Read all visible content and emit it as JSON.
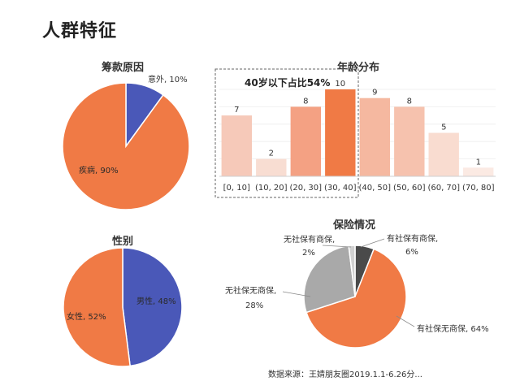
{
  "page": {
    "title": "人群特征"
  },
  "source_text": "数据来源：王婧朋友圈2019.1.1-6.26分...",
  "chart_data": [
    {
      "id": "fundraising",
      "type": "pie",
      "title": "筹款原因",
      "slices": [
        {
          "label": "意外, 10%",
          "value": 10,
          "color": "#4a58b8"
        },
        {
          "label": "疾病, 90%",
          "value": 90,
          "color": "#f07a45"
        }
      ]
    },
    {
      "id": "age",
      "type": "bar",
      "title": "年龄分布",
      "annotation": "40岁以下占比54%",
      "categories": [
        "[0, 10]",
        "(10, 20]",
        "(20, 30]",
        "(30, 40]",
        "(40, 50]",
        "(50, 60]",
        "(60, 70]",
        "(70, 80]"
      ],
      "values": [
        7,
        2,
        8,
        10,
        9,
        8,
        5,
        1
      ],
      "colors": [
        "#f6c9b9",
        "#f8ddd2",
        "#f4a183",
        "#f07a45",
        "#f5b8a0",
        "#f6c2ae",
        "#f9dcd0",
        "#fbeae3"
      ],
      "ylim": [
        0,
        10
      ]
    },
    {
      "id": "gender",
      "type": "pie",
      "title": "性别",
      "slices": [
        {
          "label": "男性, 48%",
          "value": 48,
          "color": "#4a58b8"
        },
        {
          "label": "女性, 52%",
          "value": 52,
          "color": "#f07a45"
        }
      ]
    },
    {
      "id": "insurance",
      "type": "pie",
      "title": "保险情况",
      "slices": [
        {
          "label_line1": "有社保有商保,",
          "label_line2": "6%",
          "value": 6,
          "color": "#4a4a4a"
        },
        {
          "label_line1": "有社保无商保, 64%",
          "label_line2": "",
          "value": 64,
          "color": "#f07a45"
        },
        {
          "label_line1": "无社保无商保,",
          "label_line2": "28%",
          "value": 28,
          "color": "#a9a9a9"
        },
        {
          "label_line1": "无社保有商保,",
          "label_line2": "2%",
          "value": 2,
          "color": "#d0d0d0"
        }
      ]
    }
  ]
}
